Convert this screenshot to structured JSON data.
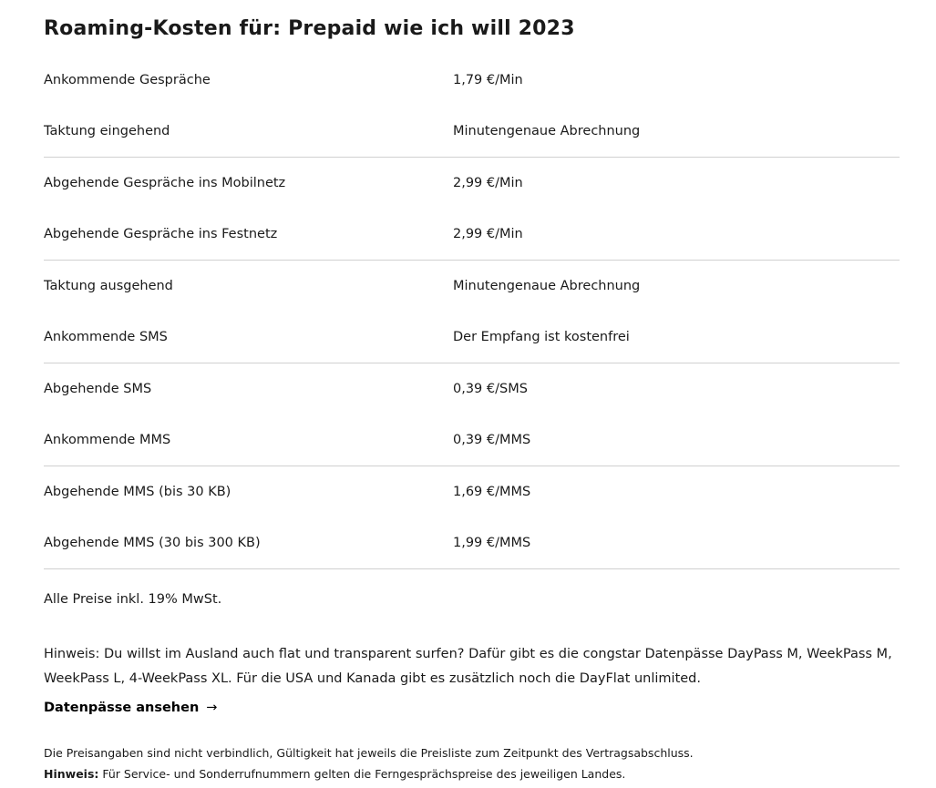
{
  "title": "Roaming-Kosten für: Prepaid wie ich will 2023",
  "groups": [
    {
      "rows": [
        {
          "label": "Ankommende Gespräche",
          "value": "1,79 €/Min"
        },
        {
          "label": "Taktung eingehend",
          "value": "Minutengenaue Abrechnung"
        }
      ]
    },
    {
      "rows": [
        {
          "label": "Abgehende Gespräche ins Mobilnetz",
          "value": "2,99 €/Min"
        },
        {
          "label": "Abgehende Gespräche ins Festnetz",
          "value": "2,99 €/Min"
        }
      ]
    },
    {
      "rows": [
        {
          "label": "Taktung ausgehend",
          "value": "Minutengenaue Abrechnung"
        },
        {
          "label": "Ankommende SMS",
          "value": "Der Empfang ist kostenfrei"
        }
      ]
    },
    {
      "rows": [
        {
          "label": "Abgehende SMS",
          "value": "0,39 €/SMS"
        },
        {
          "label": "Ankommende MMS",
          "value": "0,39 €/MMS"
        }
      ]
    },
    {
      "rows": [
        {
          "label": "Abgehende MMS (bis 30 KB)",
          "value": "1,69 €/MMS"
        },
        {
          "label": "Abgehende MMS (30 bis 300 KB)",
          "value": "1,99 €/MMS"
        }
      ]
    }
  ],
  "vat_note": "Alle Preise inkl. 19% MwSt.",
  "hint": "Hinweis: Du willst im Ausland auch flat und transparent surfen? Dafür gibt es die congstar Datenpässe DayPass M, WeekPass M, WeekPass L, 4-WeekPass XL. Für die USA und Kanada gibt es zusätzlich noch die DayFlat unlimited.",
  "link": {
    "label": "Datenpässe ansehen",
    "icon": "arrow-right-icon",
    "glyph": "→"
  },
  "disclaimer": "Die Preisangaben sind nicht verbindlich, Gültigkeit hat jeweils die Preisliste zum Zeitpunkt des Vertragsabschluss.",
  "service_hint": {
    "label": "Hinweis:",
    "text": " Für Service- und Sonderrufnummern gelten die Ferngesprächspreise des jeweiligen Landes."
  }
}
